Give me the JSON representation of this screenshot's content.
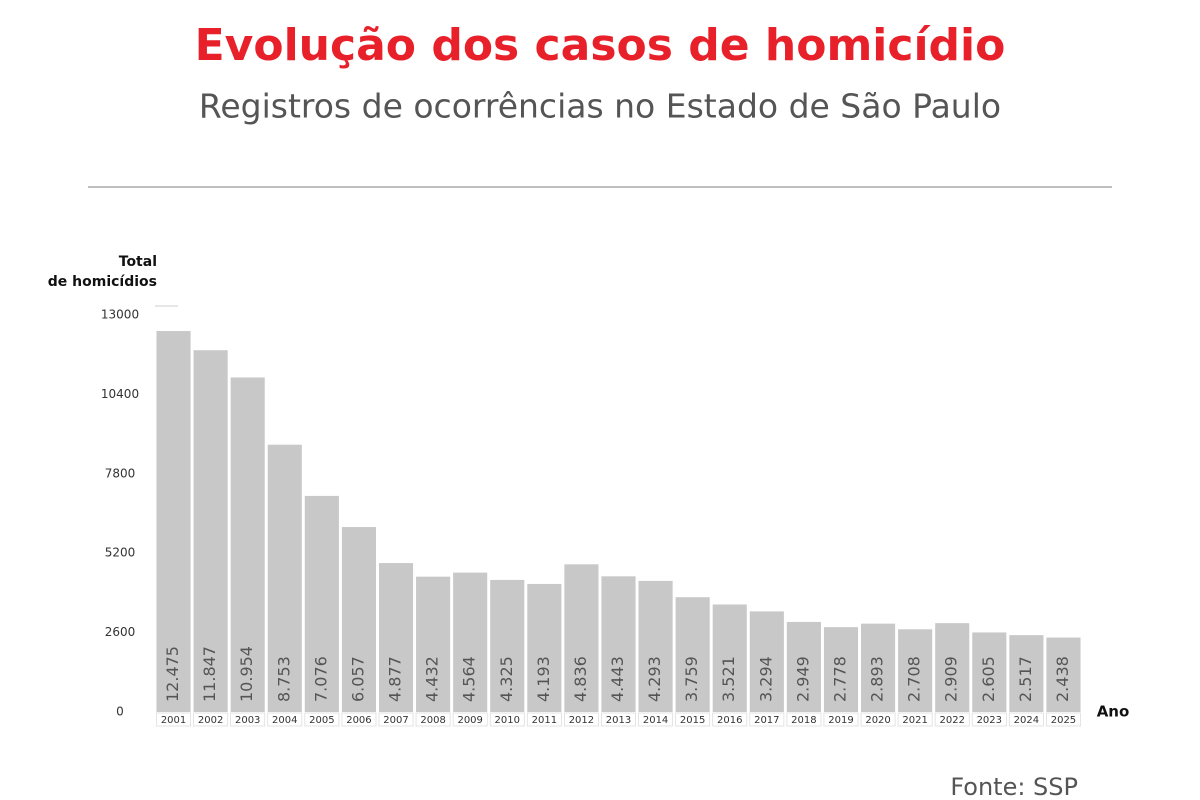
{
  "chart_data": {
    "type": "bar",
    "title": "Evolução dos casos de homicídio",
    "subtitle": "Registros de ocorrências no Estado de São Paulo",
    "y_label": [
      "Total",
      "de homicídios"
    ],
    "x_label": "Ano",
    "source": "Fonte: SSP",
    "categories": [
      "2001",
      "2002",
      "2003",
      "2004",
      "2005",
      "2006",
      "2007",
      "2008",
      "2009",
      "2010",
      "2011",
      "2012",
      "2013",
      "2014",
      "2015",
      "2016",
      "2017",
      "2018",
      "2019",
      "2020",
      "2021",
      "2022",
      "2023",
      "2024",
      "2025"
    ],
    "values": [
      12475,
      11847,
      10954,
      8753,
      7076,
      6057,
      4877,
      4432,
      4564,
      4325,
      4193,
      4836,
      4443,
      4293,
      3759,
      3521,
      3294,
      2949,
      2778,
      2893,
      2708,
      2909,
      2605,
      2517,
      2438
    ],
    "value_labels": [
      "12.475",
      "11.847",
      "10.954",
      "8.753",
      "7.076",
      "6.057",
      "4.877",
      "4.432",
      "4.564",
      "4.325",
      "4.193",
      "4.836",
      "4.443",
      "4.293",
      "3.759",
      "3.521",
      "3.294",
      "2.949",
      "2.778",
      "2.893",
      "2.708",
      "2.909",
      "2.605",
      "2.517",
      "2.438"
    ],
    "color": "#c8c8c8",
    "ylim": [
      0,
      13000
    ],
    "yticks": [
      0,
      2600,
      5200,
      7800,
      10400,
      13000
    ],
    "grid": false
  }
}
